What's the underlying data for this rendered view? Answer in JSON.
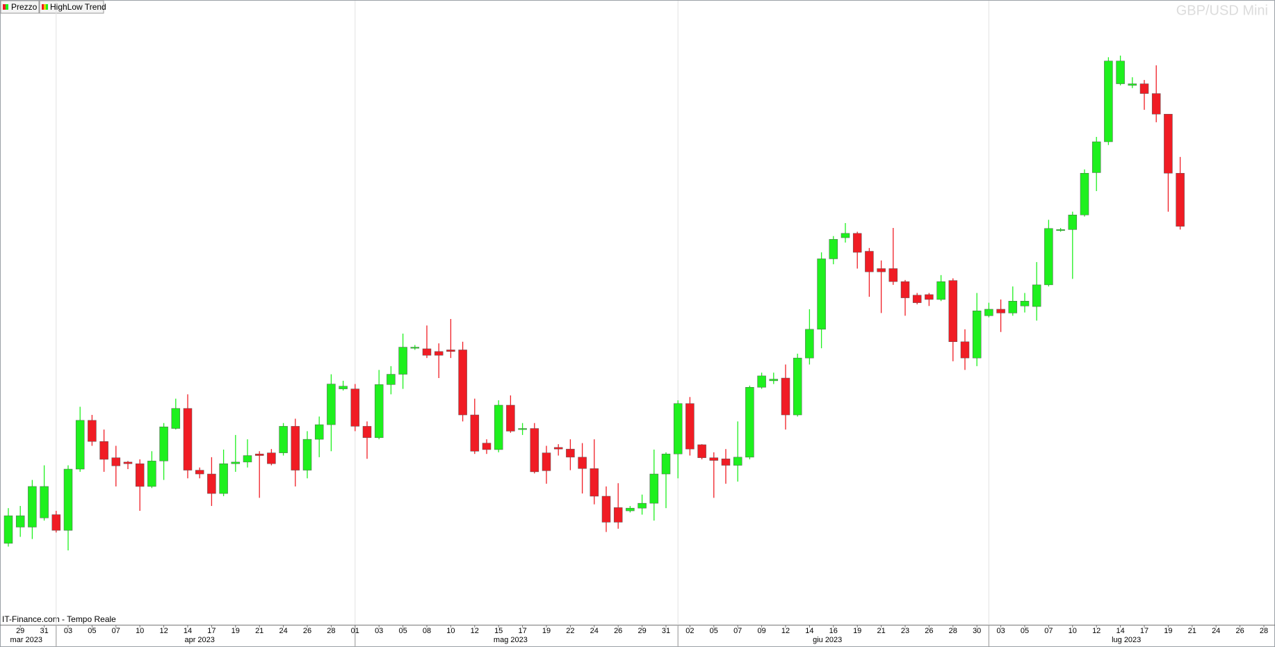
{
  "chart_data": {
    "type": "candlestick",
    "title": "GBP/USD Mini",
    "legend": [
      "Prezzo",
      "HighLow Trend"
    ],
    "source": "IT-Finance.com - Tempo Reale",
    "up_color": "#1ef01e",
    "down_color": "#f01c24",
    "categories": [
      null,
      "29",
      null,
      "31",
      null,
      "03",
      null,
      "05",
      null,
      "07",
      null,
      "10",
      null,
      "12",
      null,
      "14",
      null,
      "17",
      null,
      "19",
      null,
      "21",
      null,
      "24",
      null,
      "26",
      null,
      "28",
      null,
      "01",
      null,
      "03",
      null,
      "05",
      null,
      "08",
      null,
      "10",
      null,
      "12",
      null,
      "15",
      null,
      "17",
      null,
      "19",
      null,
      "22",
      null,
      "24",
      null,
      "26",
      null,
      "29",
      null,
      "31",
      null,
      "02",
      null,
      "05",
      null,
      "07",
      null,
      "09",
      null,
      "12",
      null,
      "14",
      null,
      "16",
      null,
      "19",
      null,
      "21",
      null,
      "23",
      null,
      "26",
      null,
      "28",
      null,
      "30",
      null,
      "03",
      null,
      "05",
      null,
      "07",
      null,
      "10",
      null,
      "12",
      null,
      "14",
      null,
      "17",
      null,
      "19",
      null,
      "21",
      null,
      "24",
      null,
      "26",
      null,
      "28"
    ],
    "months": [
      {
        "label": "mar 2023",
        "start": 0
      },
      {
        "label": "apr 2023",
        "start": 4
      },
      {
        "label": "mag 2023",
        "start": 29
      },
      {
        "label": "giu 2023",
        "start": 56
      },
      {
        "label": "lug 2023",
        "start": 82
      }
    ],
    "open": [
      1.2248,
      1.2278,
      1.2278,
      1.2295,
      1.2301,
      1.2272,
      1.2385,
      1.2475,
      1.2436,
      1.2406,
      1.2398,
      1.2395,
      1.2353,
      1.24,
      1.246,
      1.2497,
      1.2383,
      1.2376,
      1.234,
      1.2395,
      1.2398,
      1.2413,
      1.2415,
      1.2415,
      1.2464,
      1.2383,
      1.244,
      1.2467,
      1.2533,
      1.2533,
      1.2464,
      1.2443,
      1.2541,
      1.256,
      1.2608,
      1.2607,
      1.2602,
      1.2605,
      1.2605,
      1.2485,
      1.2433,
      1.2421,
      1.2503,
      1.2458,
      1.246,
      1.2415,
      1.2425,
      1.2422,
      1.2407,
      1.2386,
      1.2335,
      1.2314,
      1.2308,
      1.2313,
      1.2322,
      1.2376,
      1.2413,
      1.2506,
      1.243,
      1.2406,
      1.2404,
      1.2392,
      1.2407,
      1.2536,
      1.2548,
      1.2553,
      1.2485,
      1.259,
      1.2643,
      1.2773,
      1.2812,
      1.282,
      1.2787,
      1.2755,
      1.2755,
      1.2731,
      1.2706,
      1.2707,
      1.2698,
      1.2733,
      1.262,
      1.259,
      1.2668,
      1.268,
      1.2673,
      1.2686,
      1.2685,
      1.2725,
      1.2826,
      1.2827,
      1.2854,
      1.2932,
      1.2989,
      1.3096,
      1.3093,
      1.3096,
      1.3078,
      1.304,
      1.2931,
      null,
      null,
      null,
      null,
      null,
      null,
      null
    ],
    "high": [
      1.2313,
      1.2317,
      1.2365,
      1.2392,
      1.2308,
      1.2392,
      1.25,
      1.2485,
      1.2458,
      1.2428,
      1.24,
      1.2403,
      1.2418,
      1.247,
      1.2515,
      1.2523,
      1.2388,
      1.2407,
      1.2421,
      1.2448,
      1.244,
      1.2418,
      1.2422,
      1.247,
      1.2478,
      1.2455,
      1.2482,
      1.256,
      1.2548,
      1.2542,
      1.2473,
      1.2568,
      1.2575,
      1.2635,
      1.2614,
      1.265,
      1.2617,
      1.2662,
      1.262,
      1.2515,
      1.244,
      1.2512,
      1.2521,
      1.247,
      1.247,
      1.2428,
      1.2431,
      1.244,
      1.2433,
      1.244,
      1.2353,
      1.2359,
      1.2317,
      1.2338,
      1.2421,
      1.2416,
      1.2512,
      1.2518,
      1.2431,
      1.2416,
      1.2422,
      1.2473,
      1.2539,
      1.2563,
      1.2563,
      1.2578,
      1.2598,
      1.268,
      1.2785,
      1.2815,
      1.2839,
      1.2823,
      1.2793,
      1.277,
      1.283,
      1.2734,
      1.271,
      1.271,
      1.2743,
      1.2737,
      1.2643,
      1.271,
      1.2692,
      1.2698,
      1.2722,
      1.271,
      1.2767,
      1.2845,
      1.283,
      1.286,
      1.2938,
      1.2998,
      1.3145,
      1.3148,
      1.3108,
      1.3103,
      1.313,
      1.304,
      1.2961,
      null,
      null,
      null,
      null,
      null,
      null,
      null
    ],
    "low": [
      1.2242,
      1.226,
      1.2256,
      1.229,
      1.2268,
      1.2235,
      1.238,
      1.2428,
      1.238,
      1.2353,
      1.2385,
      1.2308,
      1.235,
      1.2365,
      1.2458,
      1.2368,
      1.2368,
      1.2317,
      1.2335,
      1.238,
      1.2388,
      1.2332,
      1.2392,
      1.241,
      1.2353,
      1.2368,
      1.2407,
      1.2418,
      1.253,
      1.2455,
      1.2404,
      1.244,
      1.2523,
      1.2533,
      1.2605,
      1.259,
      1.2553,
      1.259,
      1.2473,
      1.2413,
      1.2413,
      1.2416,
      1.2452,
      1.2448,
      1.2377,
      1.2358,
      1.241,
      1.2383,
      1.234,
      1.232,
      1.2269,
      1.2275,
      1.2305,
      1.2301,
      1.229,
      1.2313,
      1.2368,
      1.241,
      1.2403,
      1.2332,
      1.2358,
      1.2362,
      1.2403,
      1.2533,
      1.2542,
      1.2458,
      1.2482,
      1.2578,
      1.2608,
      1.2763,
      1.2803,
      1.2755,
      1.2703,
      1.2673,
      1.2725,
      1.2668,
      1.2689,
      1.2686,
      1.2695,
      1.2584,
      1.2568,
      1.2575,
      1.2665,
      1.2638,
      1.2668,
      1.2674,
      1.2659,
      1.2722,
      1.2823,
      1.2736,
      1.2851,
      1.2898,
      1.2983,
      1.3093,
      1.3088,
      1.3048,
      1.3025,
      1.286,
      1.2827,
      null,
      null,
      null,
      null,
      null,
      null,
      null
    ],
    "close": [
      1.2299,
      1.2299,
      1.2353,
      1.2353,
      1.2272,
      1.2385,
      1.2475,
      1.2436,
      1.2403,
      1.2391,
      1.2395,
      1.2353,
      1.24,
      1.2463,
      1.2497,
      1.2383,
      1.2376,
      1.234,
      1.2395,
      1.2398,
      1.241,
      1.241,
      1.2395,
      1.2464,
      1.2383,
      1.244,
      1.2467,
      1.2542,
      1.2538,
      1.2464,
      1.2443,
      1.2541,
      1.256,
      1.261,
      1.261,
      1.2595,
      1.2595,
      1.2602,
      1.2485,
      1.2418,
      1.2421,
      1.2503,
      1.2455,
      1.246,
      1.238,
      1.2382,
      1.2422,
      1.2407,
      1.2386,
      1.2335,
      1.2287,
      1.2287,
      1.2313,
      1.2322,
      1.2376,
      1.2413,
      1.2506,
      1.2422,
      1.2406,
      1.2401,
      1.2392,
      1.2407,
      1.2536,
      1.2557,
      1.2551,
      1.2485,
      1.259,
      1.2643,
      1.2773,
      1.2809,
      1.282,
      1.2785,
      1.2749,
      1.2749,
      1.2731,
      1.2701,
      1.2692,
      1.2698,
      1.2731,
      1.262,
      1.259,
      1.2677,
      1.268,
      1.2673,
      1.2695,
      1.2695,
      1.2725,
      1.2829,
      1.2827,
      1.2854,
      1.2931,
      1.2989,
      1.3138,
      1.3138,
      1.3096,
      1.3078,
      1.304,
      1.2931,
      1.2833,
      null,
      null,
      null,
      null,
      null,
      null,
      null
    ]
  }
}
